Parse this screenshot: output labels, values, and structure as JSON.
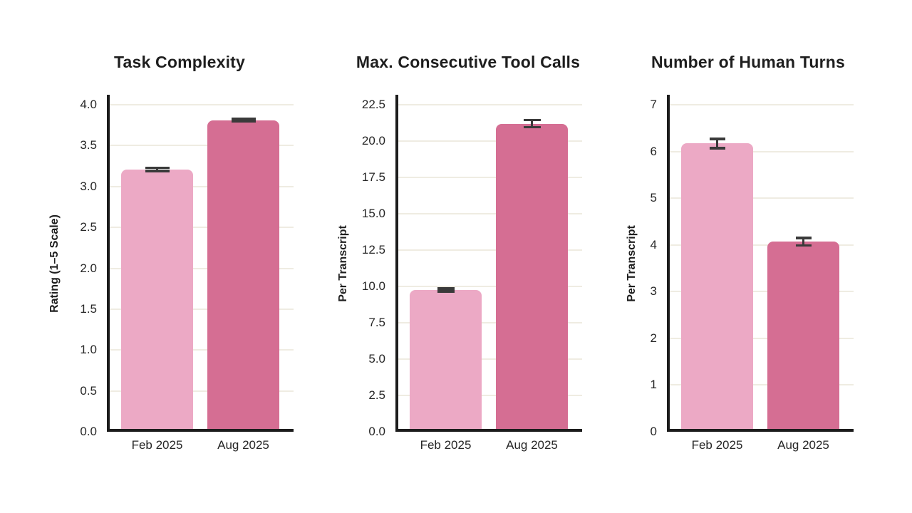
{
  "figure": {
    "background": "#ffffff",
    "text_color": "#1E1E1E",
    "gridline_color": "#EFECE2",
    "axis_color": "#1C1C1C",
    "error_bar_color": "#3A3A3A",
    "series_labels": [
      "Feb 2025",
      "Aug 2025"
    ],
    "series_colors": [
      "#ECA9C5",
      "#D56E93"
    ]
  },
  "chart_data": [
    {
      "type": "bar",
      "title": "Task Complexity",
      "ylabel": "Rating (1–5 Scale)",
      "xlabel": "",
      "categories": [
        "Feb 2025",
        "Aug 2025"
      ],
      "values": [
        3.21,
        3.81
      ],
      "errors": [
        0.02,
        0.015
      ],
      "bar_colors": [
        "#ECA9C5",
        "#D56E93"
      ],
      "yticks": [
        0.0,
        0.5,
        1.0,
        1.5,
        2.0,
        2.5,
        3.0,
        3.5,
        4.0
      ],
      "ytick_labels": [
        "0.0",
        "0.5",
        "1.0",
        "1.5",
        "2.0",
        "2.5",
        "3.0",
        "3.5",
        "4.0"
      ],
      "ylim": [
        0,
        4.0
      ],
      "grid": true,
      "legend": null
    },
    {
      "type": "bar",
      "title": "Max. Consecutive Tool Calls",
      "ylabel": "Per Transcript",
      "xlabel": "",
      "categories": [
        "Feb 2025",
        "Aug 2025"
      ],
      "values": [
        9.75,
        21.2
      ],
      "errors": [
        0.1,
        0.25
      ],
      "bar_colors": [
        "#ECA9C5",
        "#D56E93"
      ],
      "yticks": [
        0.0,
        2.5,
        5.0,
        7.5,
        10.0,
        12.5,
        15.0,
        17.5,
        20.0,
        22.5
      ],
      "ytick_labels": [
        "0.0",
        "2.5",
        "5.0",
        "7.5",
        "10.0",
        "12.5",
        "15.0",
        "17.5",
        "20.0",
        "22.5"
      ],
      "ylim": [
        0,
        22.5
      ],
      "grid": true,
      "legend": null
    },
    {
      "type": "bar",
      "title": "Number of Human Turns",
      "ylabel": "Per Transcript",
      "xlabel": "",
      "categories": [
        "Feb 2025",
        "Aug 2025"
      ],
      "values": [
        6.17,
        4.07
      ],
      "errors": [
        0.1,
        0.08
      ],
      "bar_colors": [
        "#ECA9C5",
        "#D56E93"
      ],
      "yticks": [
        0,
        1,
        2,
        3,
        4,
        5,
        6,
        7
      ],
      "ytick_labels": [
        "0",
        "1",
        "2",
        "3",
        "4",
        "5",
        "6",
        "7"
      ],
      "ylim": [
        0,
        7
      ],
      "grid": true,
      "legend": null
    }
  ]
}
